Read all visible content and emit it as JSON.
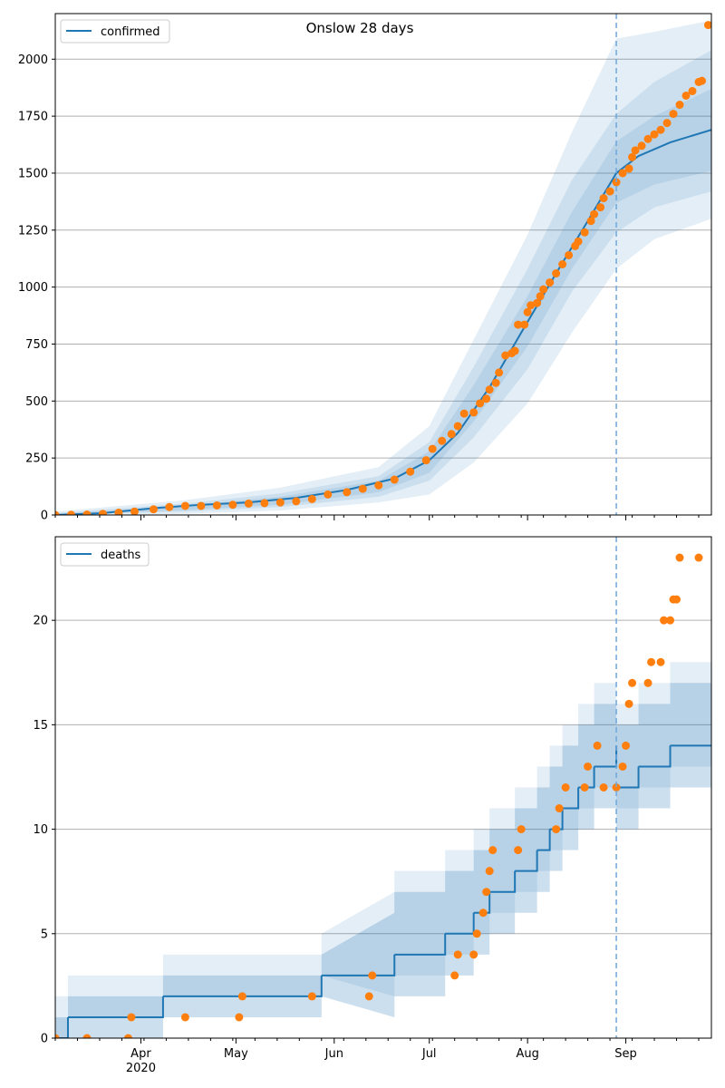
{
  "figure": {
    "title": "Onslow 28 days"
  },
  "colors": {
    "model": "#1f77b4",
    "observed": "#ff7f0e",
    "band": "#1f77b4",
    "grid": "#b0b0b0",
    "forecast_line": "#6fa8dc"
  },
  "x_axis": {
    "start": "2020-03-05",
    "end": "2020-09-28",
    "forecast_start": "2020-08-29",
    "month_ticks": [
      {
        "date": "2020-04-01",
        "label": "Apr"
      },
      {
        "date": "2020-05-01",
        "label": "May"
      },
      {
        "date": "2020-06-01",
        "label": "Jun"
      },
      {
        "date": "2020-07-01",
        "label": "Jul"
      },
      {
        "date": "2020-08-01",
        "label": "Aug"
      },
      {
        "date": "2020-09-01",
        "label": "Sep"
      }
    ],
    "year_label": {
      "date": "2020-04-01",
      "label": "2020"
    }
  },
  "chart_data": [
    {
      "type": "line",
      "legend": "confirmed",
      "legend_position": "upper-left",
      "grid": "horizontal",
      "ylim": [
        0,
        2200
      ],
      "yticks": [
        0,
        250,
        500,
        750,
        1000,
        1250,
        1500,
        1750,
        2000
      ],
      "model": [
        [
          "2020-03-05",
          0
        ],
        [
          "2020-03-20",
          8
        ],
        [
          "2020-04-05",
          30
        ],
        [
          "2020-04-20",
          45
        ],
        [
          "2020-05-05",
          55
        ],
        [
          "2020-05-20",
          75
        ],
        [
          "2020-06-05",
          110
        ],
        [
          "2020-06-20",
          160
        ],
        [
          "2020-07-01",
          240
        ],
        [
          "2020-07-10",
          360
        ],
        [
          "2020-07-20",
          560
        ],
        [
          "2020-07-30",
          800
        ],
        [
          "2020-08-10",
          1060
        ],
        [
          "2020-08-20",
          1290
        ],
        [
          "2020-08-29",
          1500
        ],
        [
          "2020-09-05",
          1575
        ],
        [
          "2020-09-15",
          1635
        ],
        [
          "2020-09-28",
          1690
        ]
      ],
      "bands": [
        {
          "level": 1,
          "lower": [
            [
              "2020-03-05",
              0
            ],
            [
              "2020-04-15",
              5
            ],
            [
              "2020-05-15",
              20
            ],
            [
              "2020-06-15",
              55
            ],
            [
              "2020-07-01",
              90
            ],
            [
              "2020-07-15",
              230
            ],
            [
              "2020-08-01",
              490
            ],
            [
              "2020-08-15",
              800
            ],
            [
              "2020-08-29",
              1080
            ],
            [
              "2020-09-10",
              1210
            ],
            [
              "2020-09-28",
              1300
            ]
          ],
          "upper": [
            [
              "2020-03-05",
              15
            ],
            [
              "2020-04-15",
              65
            ],
            [
              "2020-05-15",
              120
            ],
            [
              "2020-06-15",
              210
            ],
            [
              "2020-07-01",
              390
            ],
            [
              "2020-07-15",
              770
            ],
            [
              "2020-08-01",
              1230
            ],
            [
              "2020-08-15",
              1680
            ],
            [
              "2020-08-29",
              2090
            ],
            [
              "2020-09-10",
              2120
            ],
            [
              "2020-09-28",
              2170
            ]
          ]
        },
        {
          "level": 2,
          "lower": [
            [
              "2020-03-05",
              0
            ],
            [
              "2020-04-15",
              15
            ],
            [
              "2020-05-15",
              35
            ],
            [
              "2020-06-15",
              80
            ],
            [
              "2020-07-01",
              150
            ],
            [
              "2020-07-15",
              340
            ],
            [
              "2020-08-01",
              640
            ],
            [
              "2020-08-15",
              980
            ],
            [
              "2020-08-29",
              1240
            ],
            [
              "2020-09-10",
              1350
            ],
            [
              "2020-09-28",
              1420
            ]
          ],
          "upper": [
            [
              "2020-03-05",
              8
            ],
            [
              "2020-04-15",
              50
            ],
            [
              "2020-05-15",
              95
            ],
            [
              "2020-06-15",
              170
            ],
            [
              "2020-07-01",
              320
            ],
            [
              "2020-07-15",
              650
            ],
            [
              "2020-08-01",
              1080
            ],
            [
              "2020-08-15",
              1470
            ],
            [
              "2020-08-29",
              1760
            ],
            [
              "2020-09-10",
              1900
            ],
            [
              "2020-09-28",
              2040
            ]
          ]
        },
        {
          "level": 3,
          "lower": [
            [
              "2020-03-05",
              0
            ],
            [
              "2020-04-15",
              22
            ],
            [
              "2020-05-15",
              45
            ],
            [
              "2020-06-15",
              100
            ],
            [
              "2020-07-01",
              185
            ],
            [
              "2020-07-15",
              410
            ],
            [
              "2020-08-01",
              740
            ],
            [
              "2020-08-15",
              1080
            ],
            [
              "2020-08-29",
              1370
            ],
            [
              "2020-09-10",
              1450
            ],
            [
              "2020-09-28",
              1510
            ]
          ],
          "upper": [
            [
              "2020-03-05",
              4
            ],
            [
              "2020-04-15",
              40
            ],
            [
              "2020-05-15",
              80
            ],
            [
              "2020-06-15",
              150
            ],
            [
              "2020-07-01",
              280
            ],
            [
              "2020-07-15",
              570
            ],
            [
              "2020-08-01",
              960
            ],
            [
              "2020-08-15",
              1330
            ],
            [
              "2020-08-29",
              1640
            ],
            [
              "2020-09-10",
              1750
            ],
            [
              "2020-09-28",
              1870
            ]
          ]
        }
      ],
      "observed": [
        [
          "2020-03-05",
          0
        ],
        [
          "2020-03-10",
          1
        ],
        [
          "2020-03-15",
          2
        ],
        [
          "2020-03-20",
          5
        ],
        [
          "2020-03-25",
          10
        ],
        [
          "2020-03-30",
          15
        ],
        [
          "2020-04-05",
          25
        ],
        [
          "2020-04-10",
          35
        ],
        [
          "2020-04-15",
          40
        ],
        [
          "2020-04-20",
          40
        ],
        [
          "2020-04-25",
          42
        ],
        [
          "2020-04-30",
          45
        ],
        [
          "2020-05-05",
          50
        ],
        [
          "2020-05-10",
          52
        ],
        [
          "2020-05-15",
          55
        ],
        [
          "2020-05-20",
          60
        ],
        [
          "2020-05-25",
          70
        ],
        [
          "2020-05-30",
          90
        ],
        [
          "2020-06-05",
          100
        ],
        [
          "2020-06-10",
          115
        ],
        [
          "2020-06-15",
          130
        ],
        [
          "2020-06-20",
          155
        ],
        [
          "2020-06-25",
          190
        ],
        [
          "2020-06-30",
          240
        ],
        [
          "2020-07-02",
          290
        ],
        [
          "2020-07-05",
          325
        ],
        [
          "2020-07-08",
          355
        ],
        [
          "2020-07-10",
          390
        ],
        [
          "2020-07-12",
          445
        ],
        [
          "2020-07-15",
          450
        ],
        [
          "2020-07-17",
          490
        ],
        [
          "2020-07-19",
          510
        ],
        [
          "2020-07-20",
          550
        ],
        [
          "2020-07-22",
          580
        ],
        [
          "2020-07-23",
          625
        ],
        [
          "2020-07-25",
          700
        ],
        [
          "2020-07-27",
          710
        ],
        [
          "2020-07-28",
          720
        ],
        [
          "2020-07-29",
          835
        ],
        [
          "2020-07-31",
          835
        ],
        [
          "2020-08-01",
          890
        ],
        [
          "2020-08-02",
          920
        ],
        [
          "2020-08-04",
          930
        ],
        [
          "2020-08-05",
          960
        ],
        [
          "2020-08-06",
          990
        ],
        [
          "2020-08-08",
          1020
        ],
        [
          "2020-08-10",
          1060
        ],
        [
          "2020-08-12",
          1100
        ],
        [
          "2020-08-14",
          1140
        ],
        [
          "2020-08-16",
          1180
        ],
        [
          "2020-08-17",
          1200
        ],
        [
          "2020-08-19",
          1240
        ],
        [
          "2020-08-21",
          1290
        ],
        [
          "2020-08-22",
          1320
        ],
        [
          "2020-08-24",
          1350
        ],
        [
          "2020-08-25",
          1390
        ],
        [
          "2020-08-27",
          1420
        ],
        [
          "2020-08-29",
          1460
        ],
        [
          "2020-08-31",
          1500
        ],
        [
          "2020-09-02",
          1520
        ],
        [
          "2020-09-03",
          1570
        ],
        [
          "2020-09-04",
          1600
        ],
        [
          "2020-09-06",
          1620
        ],
        [
          "2020-09-08",
          1650
        ],
        [
          "2020-09-10",
          1670
        ],
        [
          "2020-09-12",
          1690
        ],
        [
          "2020-09-14",
          1720
        ],
        [
          "2020-09-16",
          1760
        ],
        [
          "2020-09-18",
          1800
        ],
        [
          "2020-09-20",
          1840
        ],
        [
          "2020-09-22",
          1860
        ],
        [
          "2020-09-24",
          1900
        ],
        [
          "2020-09-25",
          1905
        ],
        [
          "2020-09-27",
          2150
        ]
      ]
    },
    {
      "type": "line",
      "legend": "deaths",
      "legend_position": "upper-left",
      "grid": "horizontal",
      "ylim": [
        0,
        24
      ],
      "yticks": [
        0,
        5,
        10,
        15,
        20
      ],
      "model": [
        [
          "2020-03-05",
          0
        ],
        [
          "2020-03-09",
          1
        ],
        [
          "2020-04-08",
          2
        ],
        [
          "2020-05-28",
          3
        ],
        [
          "2020-06-20",
          4
        ],
        [
          "2020-07-06",
          5
        ],
        [
          "2020-07-15",
          6
        ],
        [
          "2020-07-20",
          7
        ],
        [
          "2020-07-28",
          8
        ],
        [
          "2020-08-04",
          9
        ],
        [
          "2020-08-08",
          10
        ],
        [
          "2020-08-12",
          11
        ],
        [
          "2020-08-17",
          12
        ],
        [
          "2020-08-22",
          13
        ],
        [
          "2020-08-29",
          14
        ],
        [
          "2020-08-29",
          12
        ],
        [
          "2020-09-05",
          13
        ],
        [
          "2020-09-15",
          14
        ],
        [
          "2020-09-28",
          14
        ]
      ],
      "observed": [
        [
          "2020-03-05",
          0
        ],
        [
          "2020-03-15",
          0
        ],
        [
          "2020-03-28",
          0
        ],
        [
          "2020-03-29",
          1
        ],
        [
          "2020-04-15",
          1
        ],
        [
          "2020-05-02",
          1
        ],
        [
          "2020-05-03",
          2
        ],
        [
          "2020-05-25",
          2
        ],
        [
          "2020-06-12",
          2
        ],
        [
          "2020-06-13",
          3
        ],
        [
          "2020-07-09",
          3
        ],
        [
          "2020-07-10",
          4
        ],
        [
          "2020-07-15",
          4
        ],
        [
          "2020-07-16",
          5
        ],
        [
          "2020-07-18",
          6
        ],
        [
          "2020-07-19",
          7
        ],
        [
          "2020-07-20",
          8
        ],
        [
          "2020-07-21",
          9
        ],
        [
          "2020-07-29",
          9
        ],
        [
          "2020-07-30",
          10
        ],
        [
          "2020-08-10",
          10
        ],
        [
          "2020-08-11",
          11
        ],
        [
          "2020-08-13",
          12
        ],
        [
          "2020-08-19",
          12
        ],
        [
          "2020-08-20",
          13
        ],
        [
          "2020-08-23",
          14
        ],
        [
          "2020-08-25",
          12
        ],
        [
          "2020-08-29",
          12
        ],
        [
          "2020-08-31",
          13
        ],
        [
          "2020-09-01",
          14
        ],
        [
          "2020-09-02",
          16
        ],
        [
          "2020-09-03",
          17
        ],
        [
          "2020-09-08",
          17
        ],
        [
          "2020-09-09",
          18
        ],
        [
          "2020-09-12",
          18
        ],
        [
          "2020-09-13",
          20
        ],
        [
          "2020-09-15",
          20
        ],
        [
          "2020-09-16",
          21
        ],
        [
          "2020-09-17",
          21
        ],
        [
          "2020-09-18",
          23
        ],
        [
          "2020-09-24",
          23
        ]
      ]
    }
  ]
}
